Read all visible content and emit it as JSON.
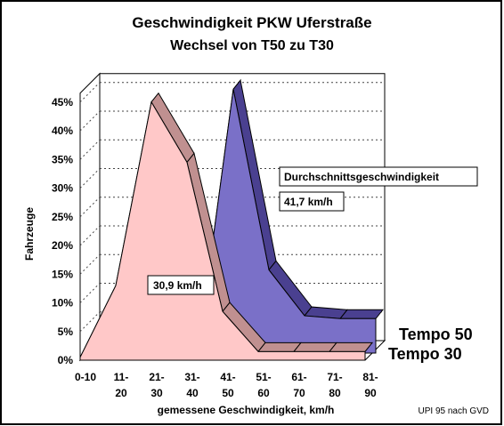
{
  "chart_data": {
    "type": "area",
    "title": "Geschwindigkeit PKW Uferstraße",
    "subtitle": "Wechsel von T50 zu T30",
    "xlabel": "gemessene Geschwindigkeit, km/h",
    "ylabel": "Fahrzeuge",
    "ylim": [
      0,
      45
    ],
    "yticks": [
      "0%",
      "5%",
      "10%",
      "15%",
      "20%",
      "25%",
      "30%",
      "35%",
      "40%",
      "45%"
    ],
    "categories": [
      [
        "0-10",
        ""
      ],
      [
        "11-",
        "20"
      ],
      [
        "21-",
        "30"
      ],
      [
        "31-",
        "40"
      ],
      [
        "41-",
        "50"
      ],
      [
        "51-",
        "60"
      ],
      [
        "61-",
        "70"
      ],
      [
        "71-",
        "80"
      ],
      [
        "81-",
        "90"
      ]
    ],
    "series": [
      {
        "name": "Tempo 30",
        "values": [
          0.5,
          13,
          45,
          34.5,
          8.5,
          1.5,
          1.5,
          1.5,
          1.5
        ],
        "color": "#ffc8c8"
      },
      {
        "name": "Tempo 50",
        "values": [
          0,
          0,
          0,
          0,
          46,
          14.5,
          6.5,
          6,
          6
        ],
        "color": "#7a70c8"
      }
    ],
    "annotations": {
      "legend_title": "Durchschnittsgeschwindigkeit",
      "avg_t50": "41,7 km/h",
      "avg_t30": "30,9 km/h"
    },
    "source": "UPI 95 nach GVD",
    "grid": true
  }
}
